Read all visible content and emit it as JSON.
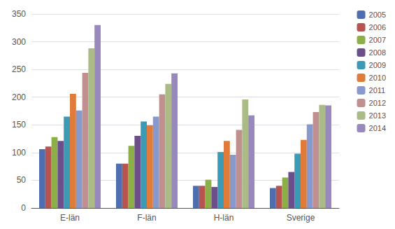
{
  "chart_data": {
    "type": "bar",
    "categories": [
      "E-län",
      "F-län",
      "H-län",
      "Sverige"
    ],
    "series": [
      {
        "name": "2005",
        "color": "#4F6EAF",
        "values": [
          106,
          80,
          40,
          36
        ]
      },
      {
        "name": "2006",
        "color": "#B85450",
        "values": [
          111,
          80,
          40,
          40
        ]
      },
      {
        "name": "2007",
        "color": "#8DAF47",
        "values": [
          128,
          112,
          51,
          55
        ]
      },
      {
        "name": "2008",
        "color": "#6B4E8A",
        "values": [
          121,
          130,
          38,
          65
        ]
      },
      {
        "name": "2009",
        "color": "#3D9AB5",
        "values": [
          165,
          156,
          101,
          98
        ]
      },
      {
        "name": "2010",
        "color": "#E07B39",
        "values": [
          206,
          149,
          121,
          123
        ]
      },
      {
        "name": "2011",
        "color": "#8899CC",
        "values": [
          176,
          165,
          96,
          151
        ]
      },
      {
        "name": "2012",
        "color": "#C09090",
        "values": [
          244,
          205,
          141,
          173
        ]
      },
      {
        "name": "2013",
        "color": "#AABB88",
        "values": [
          288,
          224,
          196,
          186
        ]
      },
      {
        "name": "2014",
        "color": "#9988BB",
        "values": [
          330,
          243,
          167,
          185
        ]
      }
    ],
    "ylim": [
      0,
      350
    ],
    "yticks": [
      0,
      50,
      100,
      150,
      200,
      250,
      300,
      350
    ],
    "grid": true,
    "legend": "right"
  }
}
